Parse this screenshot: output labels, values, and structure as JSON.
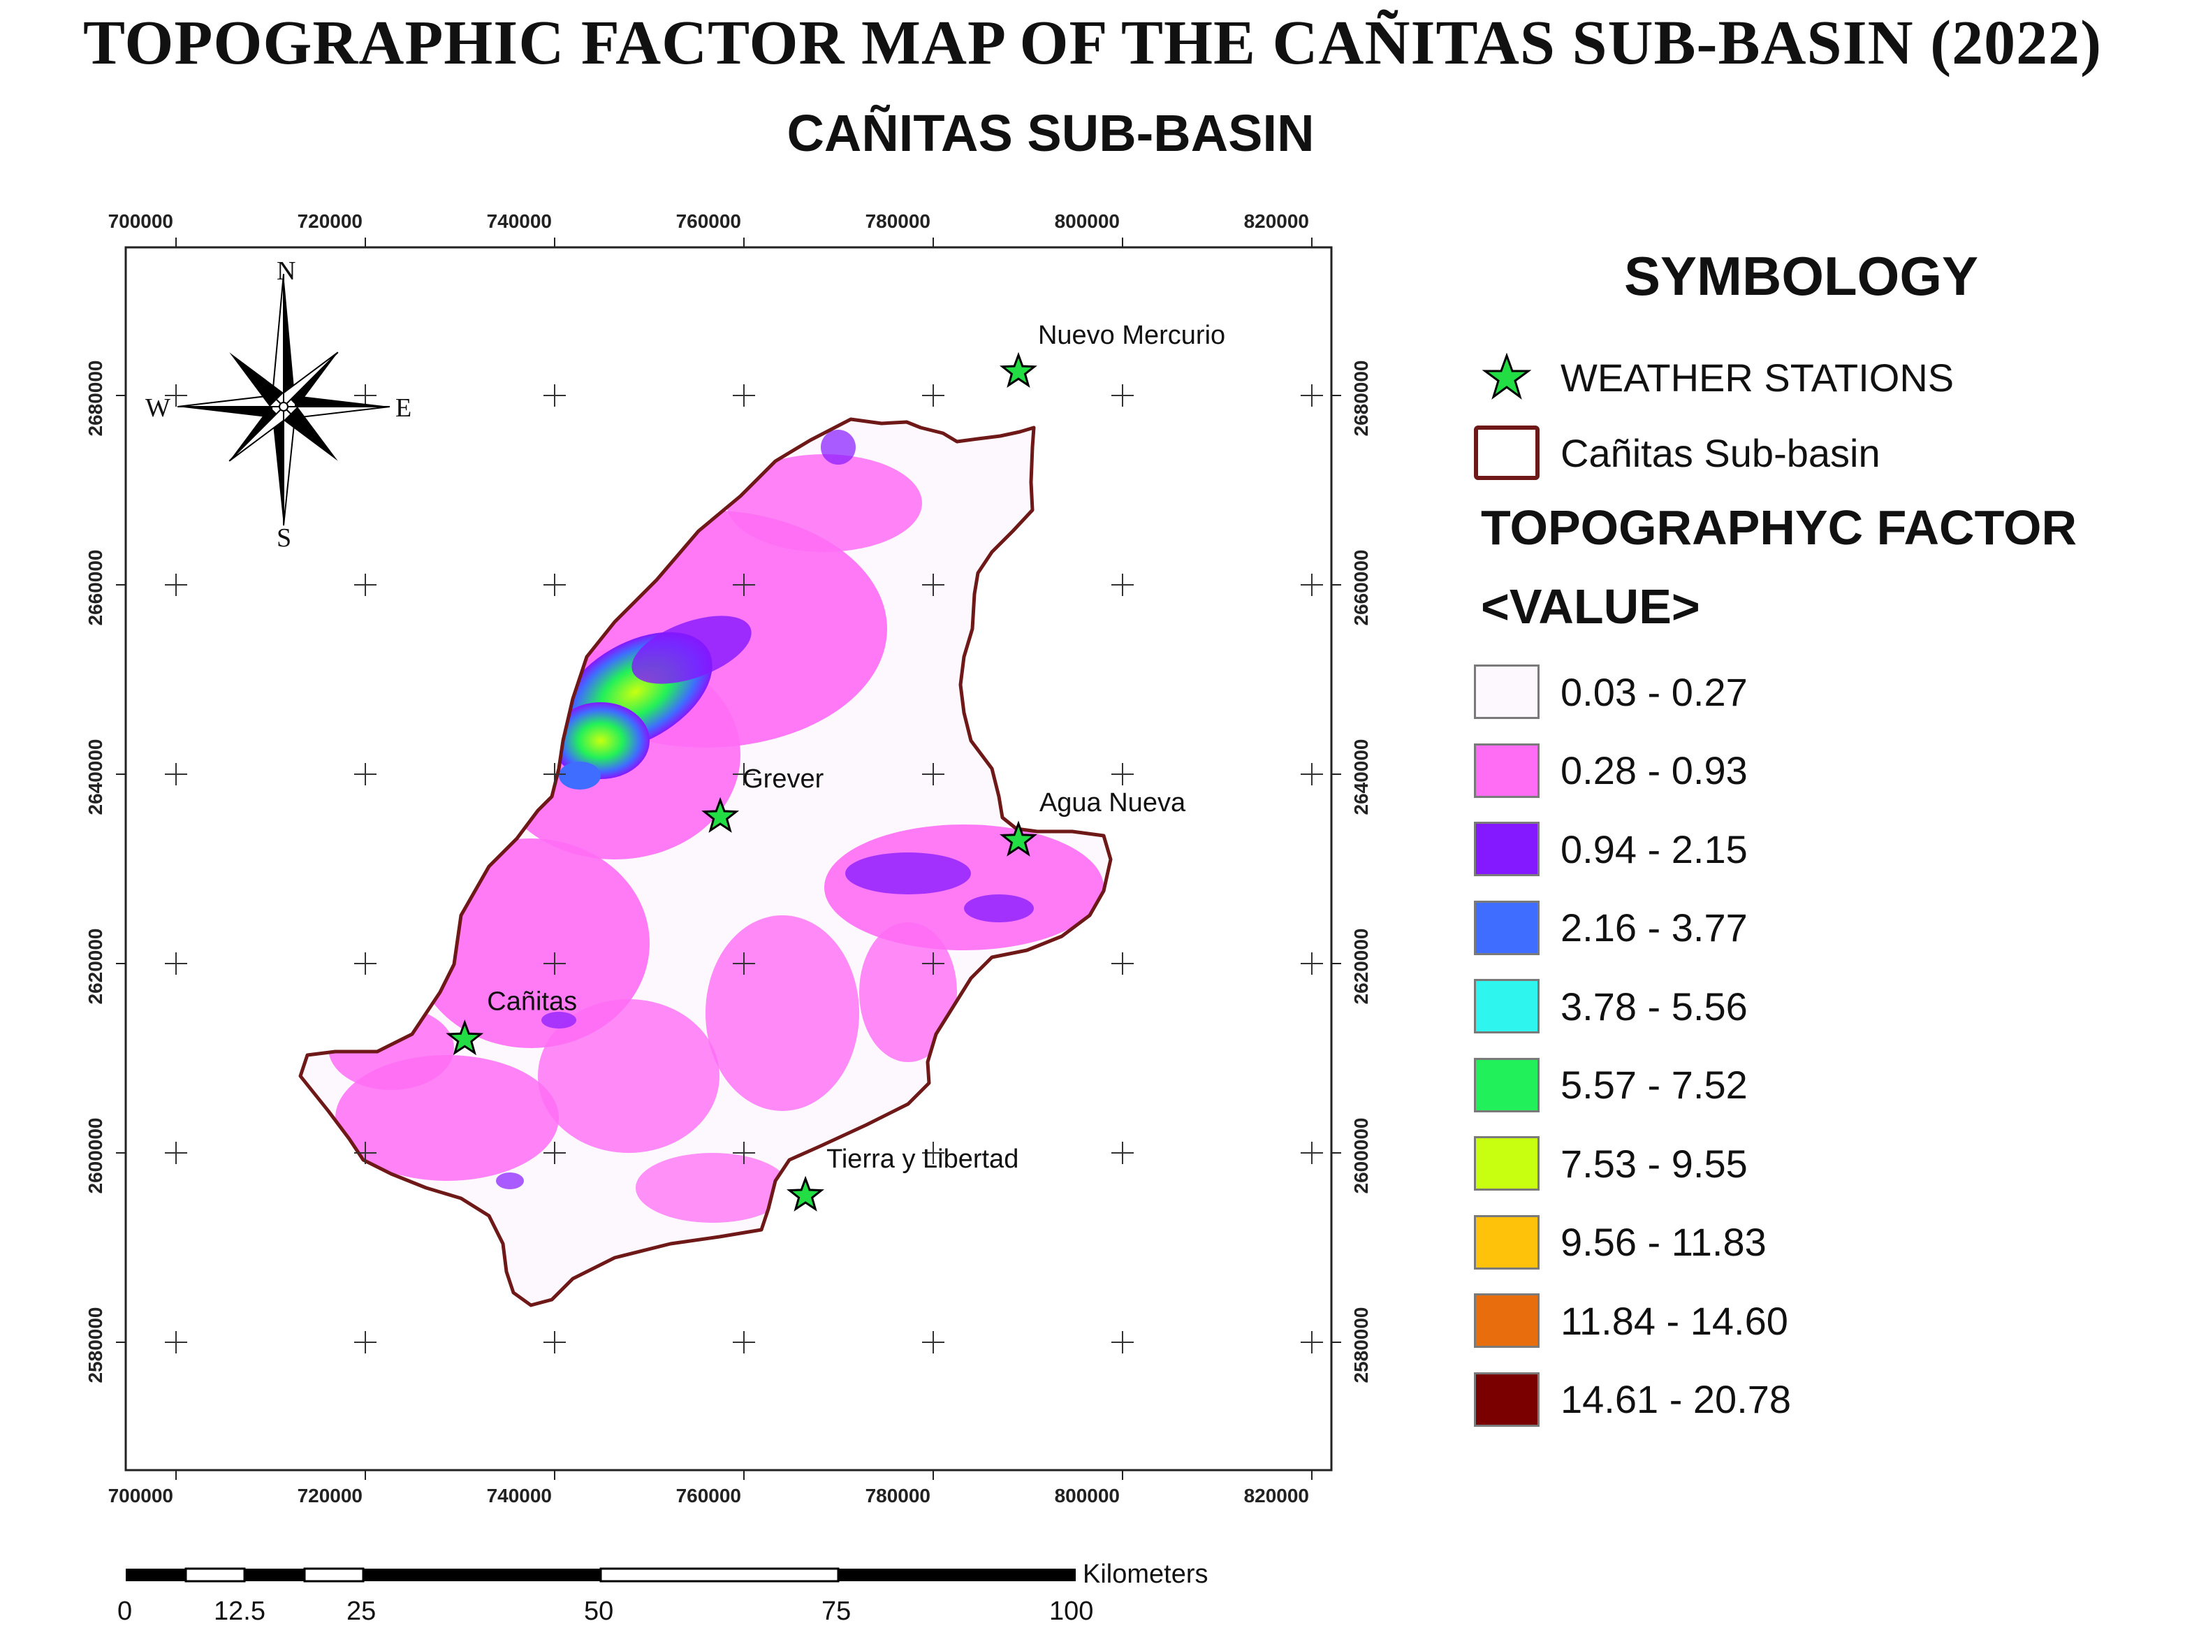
{
  "title": "TOPOGRAPHIC FACTOR MAP OF THE CAÑITAS SUB-BASIN (2022)",
  "subtitle": "CAÑITAS SUB-BASIN",
  "grid": {
    "x_ticks": [
      "700000",
      "720000",
      "740000",
      "760000",
      "780000",
      "800000",
      "820000"
    ],
    "y_ticks": [
      "2680000",
      "2660000",
      "2640000",
      "2620000",
      "2600000",
      "2580000"
    ]
  },
  "compass": {
    "n": "N",
    "s": "S",
    "e": "E",
    "w": "W"
  },
  "stations": [
    {
      "name": "Nuevo Mercurio",
      "easting": 789000,
      "northing": 2682500
    },
    {
      "name": "Grever",
      "easting": 757500,
      "northing": 2635500
    },
    {
      "name": "Agua Nueva",
      "easting": 789000,
      "northing": 2633000
    },
    {
      "name": "Cañitas",
      "easting": 730500,
      "northing": 2612000
    },
    {
      "name": "Tierra y Libertad",
      "easting": 766500,
      "northing": 2595500
    }
  ],
  "legend": {
    "title": "SYMBOLOGY",
    "stations_label": "WEATHER STATIONS",
    "basin_label": "Cañitas Sub-basin",
    "factor_title": "TOPOGRAPHYC FACTOR",
    "value_title": "<VALUE>",
    "classes": [
      {
        "label": "0.03 - 0.27",
        "color": "#fdf8fd"
      },
      {
        "label": "0.28 - 0.93",
        "color": "#ff6df5"
      },
      {
        "label": "0.94 - 2.15",
        "color": "#8418ff"
      },
      {
        "label": "2.16 - 3.77",
        "color": "#3f6dff"
      },
      {
        "label": "3.78 - 5.56",
        "color": "#2ef5ee"
      },
      {
        "label": "5.57 - 7.52",
        "color": "#22f05a"
      },
      {
        "label": "7.53 - 9.55",
        "color": "#c8ff10"
      },
      {
        "label": "9.56 - 11.83",
        "color": "#ffc20a"
      },
      {
        "label": "11.84 - 14.60",
        "color": "#e86d0c"
      },
      {
        "label": "14.61 - 20.78",
        "color": "#7a0000"
      }
    ]
  },
  "scale_bar": {
    "ticks": [
      "0",
      "12.5",
      "25",
      "50",
      "75",
      "100"
    ],
    "unit": "Kilometers"
  },
  "colors": {
    "basin_outline": "#6e1818",
    "station_fill": "#22dd44",
    "frame": "#222222"
  }
}
